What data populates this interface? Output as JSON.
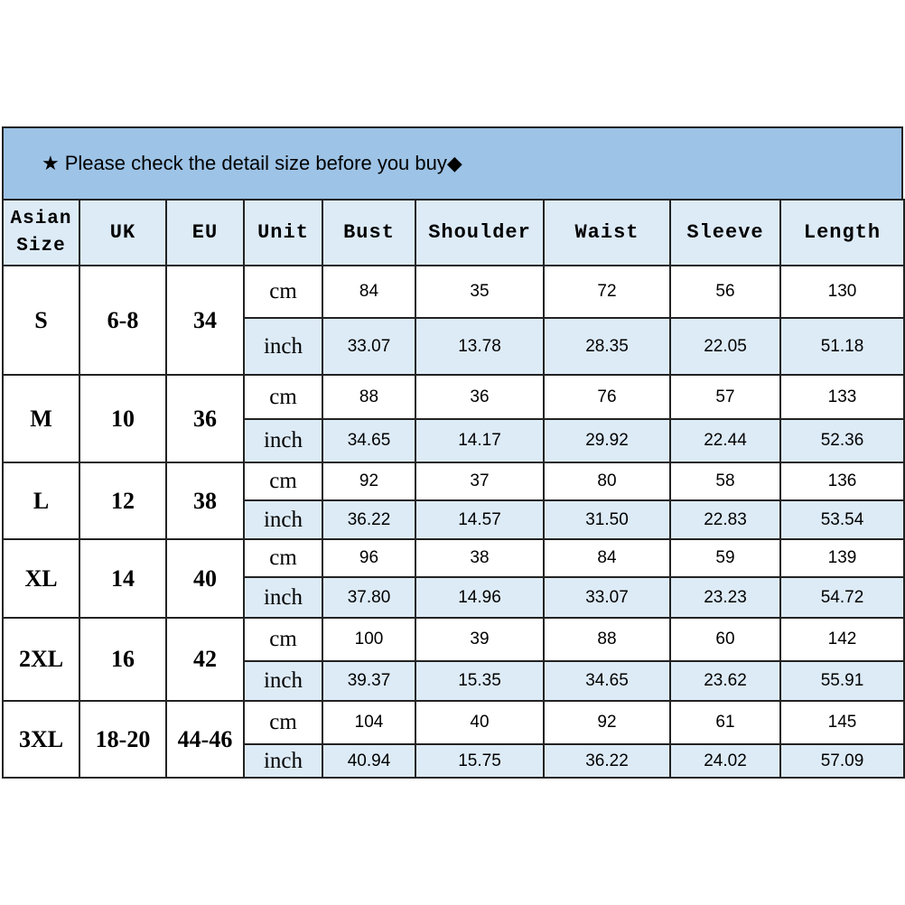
{
  "banner": {
    "star_icon": "★",
    "text": "Please check the detail size before you buy",
    "diamond_icon": "◆"
  },
  "colors": {
    "banner": "#9dc3e6",
    "header": "#ddebf7",
    "inch_row": "#ddebf7"
  },
  "headers": [
    "Asian Size",
    "UK",
    "EU",
    "Unit",
    "Bust",
    "Shoulder",
    "Waist",
    "Sleeve",
    "Length"
  ],
  "rows": [
    {
      "size": "S",
      "uk": "6-8",
      "eu": "34",
      "cm": [
        "84",
        "35",
        "72",
        "56",
        "130"
      ],
      "inch": [
        "33.07",
        "13.78",
        "28.35",
        "22.05",
        "51.18"
      ]
    },
    {
      "size": "M",
      "uk": "10",
      "eu": "36",
      "cm": [
        "88",
        "36",
        "76",
        "57",
        "133"
      ],
      "inch": [
        "34.65",
        "14.17",
        "29.92",
        "22.44",
        "52.36"
      ]
    },
    {
      "size": "L",
      "uk": "12",
      "eu": "38",
      "cm": [
        "92",
        "37",
        "80",
        "58",
        "136"
      ],
      "inch": [
        "36.22",
        "14.57",
        "31.50",
        "22.83",
        "53.54"
      ]
    },
    {
      "size": "XL",
      "uk": "14",
      "eu": "40",
      "cm": [
        "96",
        "38",
        "84",
        "59",
        "139"
      ],
      "inch": [
        "37.80",
        "14.96",
        "33.07",
        "23.23",
        "54.72"
      ]
    },
    {
      "size": "2XL",
      "uk": "16",
      "eu": "42",
      "cm": [
        "100",
        "39",
        "88",
        "60",
        "142"
      ],
      "inch": [
        "39.37",
        "15.35",
        "34.65",
        "23.62",
        "55.91"
      ]
    },
    {
      "size": "3XL",
      "uk": "18-20",
      "eu": "44-46",
      "cm": [
        "104",
        "40",
        "92",
        "61",
        "145"
      ],
      "inch": [
        "40.94",
        "15.75",
        "36.22",
        "24.02",
        "57.09"
      ]
    }
  ],
  "units": {
    "cm": "cm",
    "inch": "inch"
  }
}
